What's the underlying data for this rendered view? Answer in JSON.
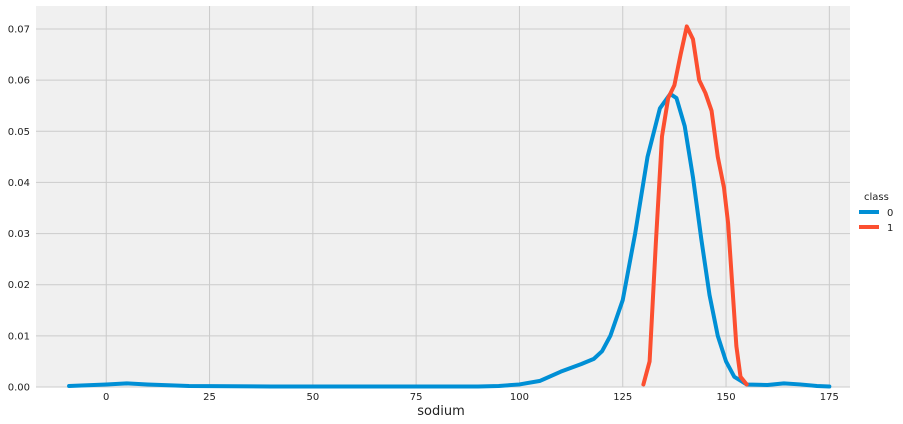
{
  "chart_data": {
    "type": "line",
    "title": "",
    "xlabel": "sodium",
    "ylabel": "",
    "xlim": [
      -17,
      180
    ],
    "ylim": [
      0,
      0.0745
    ],
    "xticks": [
      0,
      25,
      50,
      75,
      100,
      125,
      150,
      175
    ],
    "yticks": [
      0.0,
      0.01,
      0.02,
      0.03,
      0.04,
      0.05,
      0.06,
      0.07
    ],
    "ytick_labels": [
      "0.00",
      "0.01",
      "0.02",
      "0.03",
      "0.04",
      "0.05",
      "0.06",
      "0.07"
    ],
    "grid": true,
    "legend": {
      "title": "class",
      "placement": "right"
    },
    "series": [
      {
        "name": "0",
        "color": "#008fd5",
        "points": [
          [
            -9,
            0.0002
          ],
          [
            0,
            0.0005
          ],
          [
            5,
            0.0007
          ],
          [
            10,
            0.0005
          ],
          [
            20,
            0.0002
          ],
          [
            40,
            0.0001
          ],
          [
            60,
            0.0001
          ],
          [
            80,
            0.0001
          ],
          [
            90,
            0.0001
          ],
          [
            95,
            0.0002
          ],
          [
            100,
            0.0005
          ],
          [
            105,
            0.0012
          ],
          [
            110,
            0.003
          ],
          [
            115,
            0.0045
          ],
          [
            118,
            0.0055
          ],
          [
            120,
            0.007
          ],
          [
            122,
            0.01
          ],
          [
            125,
            0.017
          ],
          [
            128,
            0.03
          ],
          [
            131,
            0.045
          ],
          [
            134,
            0.0545
          ],
          [
            136.5,
            0.0573
          ],
          [
            138,
            0.0565
          ],
          [
            140,
            0.051
          ],
          [
            142,
            0.041
          ],
          [
            144,
            0.029
          ],
          [
            146,
            0.018
          ],
          [
            148,
            0.01
          ],
          [
            150,
            0.005
          ],
          [
            152,
            0.002
          ],
          [
            155,
            0.0005
          ],
          [
            160,
            0.0004
          ],
          [
            164,
            0.0007
          ],
          [
            168,
            0.0005
          ],
          [
            172,
            0.0002
          ],
          [
            175,
            0.0001
          ]
        ]
      },
      {
        "name": "1",
        "color": "#fc4f30",
        "points": [
          [
            130,
            0.0005
          ],
          [
            131.5,
            0.005
          ],
          [
            133,
            0.028
          ],
          [
            134.5,
            0.049
          ],
          [
            136,
            0.0565
          ],
          [
            137.5,
            0.059
          ],
          [
            139,
            0.065
          ],
          [
            140.5,
            0.0705
          ],
          [
            142,
            0.068
          ],
          [
            143.5,
            0.06
          ],
          [
            145,
            0.0575
          ],
          [
            146.5,
            0.054
          ],
          [
            148,
            0.045
          ],
          [
            149.5,
            0.039
          ],
          [
            150.5,
            0.032
          ],
          [
            151.5,
            0.02
          ],
          [
            152.5,
            0.008
          ],
          [
            153.5,
            0.002
          ],
          [
            155,
            0.0005
          ]
        ]
      }
    ]
  }
}
